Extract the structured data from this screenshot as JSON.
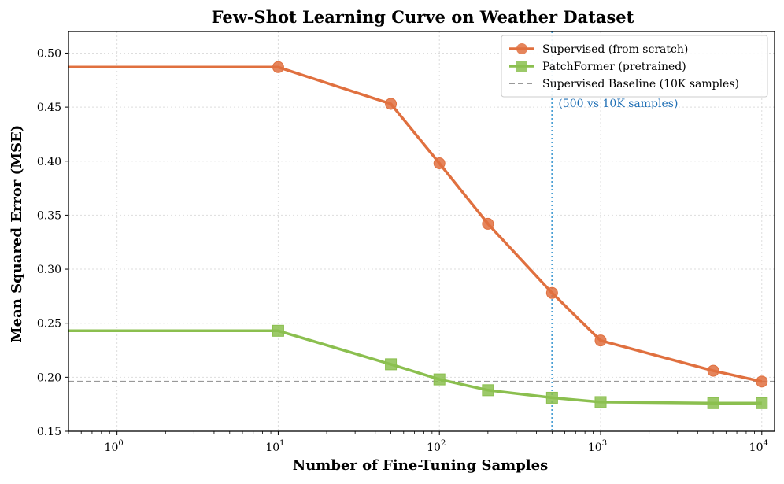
{
  "chart_data": {
    "type": "line",
    "title": "Few-Shot Learning Curve on Weather Dataset",
    "xlabel": "Number of Fine-Tuning Samples",
    "ylabel": "Mean Squared Error (MSE)",
    "xscale": "log",
    "xlim": [
      0.5,
      12000
    ],
    "ylim": [
      0.15,
      0.52
    ],
    "grid": true,
    "legend_position": "top-right",
    "x_ticks": [
      {
        "value": 1,
        "base": "10",
        "exp": "0"
      },
      {
        "value": 10,
        "base": "10",
        "exp": "1"
      },
      {
        "value": 100,
        "base": "10",
        "exp": "2"
      },
      {
        "value": 1000,
        "base": "10",
        "exp": "3"
      },
      {
        "value": 10000,
        "base": "10",
        "exp": "4"
      }
    ],
    "y_ticks": [
      {
        "value": 0.15,
        "label": "0.15"
      },
      {
        "value": 0.2,
        "label": "0.20"
      },
      {
        "value": 0.25,
        "label": "0.25"
      },
      {
        "value": 0.3,
        "label": "0.30"
      },
      {
        "value": 0.35,
        "label": "0.35"
      },
      {
        "value": 0.4,
        "label": "0.40"
      },
      {
        "value": 0.45,
        "label": "0.45"
      },
      {
        "value": 0.5,
        "label": "0.50"
      }
    ],
    "series": [
      {
        "name": "Supervised (from scratch)",
        "color": "#e0703f",
        "marker": "circle",
        "x": [
          0.5,
          10,
          50,
          100,
          200,
          500,
          1000,
          5000,
          10000
        ],
        "values": [
          0.487,
          0.487,
          0.453,
          0.398,
          0.342,
          0.278,
          0.234,
          0.206,
          0.196
        ]
      },
      {
        "name": "PatchFormer (pretrained)",
        "color": "#8bbf4f",
        "marker": "square",
        "x": [
          0.5,
          10,
          50,
          100,
          200,
          500,
          1000,
          5000,
          10000
        ],
        "values": [
          0.243,
          0.243,
          0.212,
          0.198,
          0.188,
          0.181,
          0.177,
          0.176,
          0.176
        ]
      }
    ],
    "baseline": {
      "name": "Supervised Baseline (10K samples)",
      "value": 0.196,
      "color": "#999999"
    },
    "vline": {
      "x": 500,
      "color": "#4a9fd4",
      "annotation": "(500 vs 10K samples)",
      "annotation_color": "#1f6fb5"
    }
  }
}
